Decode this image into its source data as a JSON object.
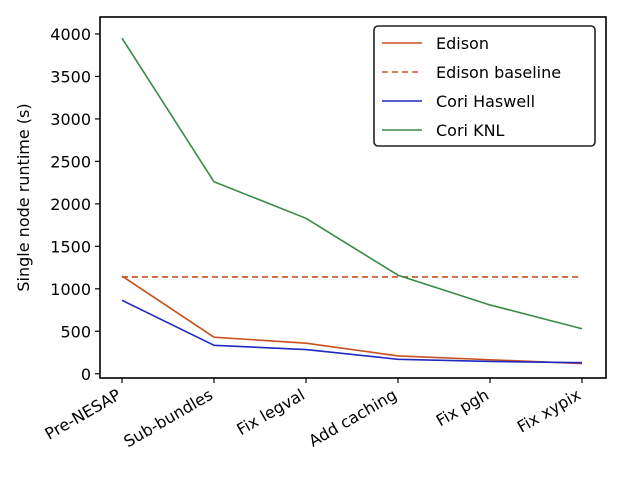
{
  "chart_data": {
    "type": "line",
    "title": "",
    "xlabel": "",
    "ylabel": "Single node runtime (s)",
    "categories": [
      "Pre-NESAP",
      "Sub-bundles",
      "Fix legval",
      "Add caching",
      "Fix pgh",
      "Fix xypix"
    ],
    "ylim": [
      -50,
      4200
    ],
    "yticks": [
      0,
      500,
      1000,
      1500,
      2000,
      2500,
      3000,
      3500,
      4000
    ],
    "grid": false,
    "legend_position": "upper-right",
    "series": [
      {
        "name": "Edison",
        "color": "#c8501e",
        "style": "solid",
        "values": [
          1150,
          430,
          360,
          210,
          165,
          120
        ]
      },
      {
        "name": "Edison baseline",
        "color": "#c8501e",
        "style": "dashed",
        "values": [
          1140,
          1140,
          1140,
          1140,
          1140,
          1140
        ]
      },
      {
        "name": "Cori Haswell",
        "color": "#2028c0",
        "style": "solid",
        "values": [
          865,
          335,
          285,
          170,
          145,
          130
        ]
      },
      {
        "name": "Cori KNL",
        "color": "#3a8a46",
        "style": "solid",
        "values": [
          3950,
          2260,
          1830,
          1160,
          810,
          530
        ]
      }
    ]
  }
}
